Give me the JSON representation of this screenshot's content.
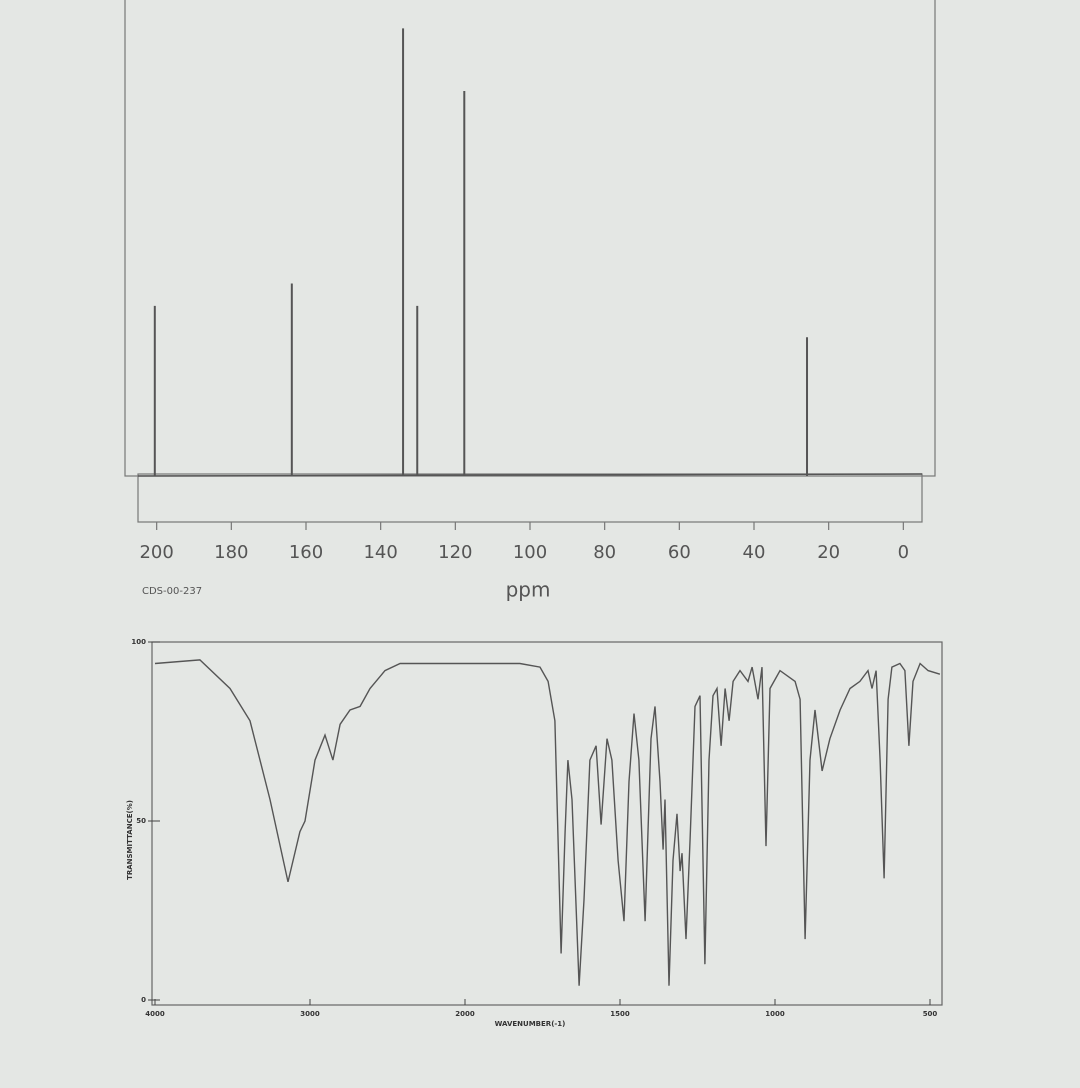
{
  "chart_data": [
    {
      "type": "stick",
      "annotation": "CDS-00-237",
      "xlabel": "ppm",
      "color": "#555555",
      "x": [
        200.5,
        163.8,
        134.0,
        130.2,
        117.6,
        25.8
      ],
      "values": [
        38,
        43,
        100,
        38,
        86,
        31
      ],
      "xlim": [
        205,
        -5
      ],
      "ylim": [
        0,
        105
      ],
      "xticks": [
        200,
        180,
        160,
        140,
        120,
        100,
        80,
        60,
        40,
        20,
        0
      ]
    },
    {
      "type": "line",
      "xlabel": "WAVENUMBER(-1)",
      "ylabel": "TRANSMITTANCE(%)",
      "color": "#555555",
      "x": [
        4000,
        3710,
        3516,
        3387,
        3258,
        3142,
        3065,
        3032,
        2968,
        2903,
        2852,
        2806,
        2742,
        2677,
        2613,
        2516,
        2419,
        2097,
        1952,
        1823,
        1758,
        1732,
        1710,
        1690,
        1677,
        1668,
        1655,
        1632,
        1616,
        1597,
        1577,
        1561,
        1542,
        1526,
        1506,
        1487,
        1471,
        1455,
        1439,
        1419,
        1400,
        1387,
        1371,
        1361,
        1355,
        1342,
        1329,
        1316,
        1306,
        1300,
        1287,
        1274,
        1258,
        1242,
        1226,
        1213,
        1200,
        1187,
        1174,
        1161,
        1148,
        1135,
        1113,
        1087,
        1074,
        1055,
        1042,
        1029,
        1016,
        984,
        935,
        919,
        903,
        887,
        871,
        848,
        823,
        790,
        758,
        726,
        700,
        687,
        674,
        661,
        648,
        635,
        623,
        597,
        581,
        568,
        555,
        532,
        506,
        468
      ],
      "values": [
        94,
        95,
        87,
        78,
        56,
        33,
        47,
        50,
        67,
        74,
        67,
        77,
        81,
        82,
        87,
        92,
        94,
        94,
        94,
        94,
        93,
        89,
        78,
        13,
        47,
        67,
        56,
        4,
        28,
        67,
        71,
        49,
        73,
        67,
        39,
        22,
        61,
        80,
        67,
        22,
        73,
        82,
        61,
        42,
        56,
        4,
        39,
        52,
        36,
        41,
        17,
        45,
        82,
        85,
        10,
        67,
        85,
        87,
        71,
        87,
        78,
        89,
        92,
        89,
        93,
        84,
        93,
        43,
        87,
        92,
        89,
        84,
        17,
        67,
        81,
        64,
        73,
        81,
        87,
        89,
        92,
        87,
        92,
        67,
        34,
        84,
        93,
        94,
        92,
        71,
        89,
        94,
        92,
        91
      ],
      "xlim": [
        4000,
        450
      ],
      "xbreak": 2000,
      "ylim": [
        0,
        100
      ],
      "xticks": [
        4000,
        3000,
        2000,
        1500,
        1000,
        500
      ],
      "yticks": [
        0,
        50,
        100
      ]
    }
  ]
}
